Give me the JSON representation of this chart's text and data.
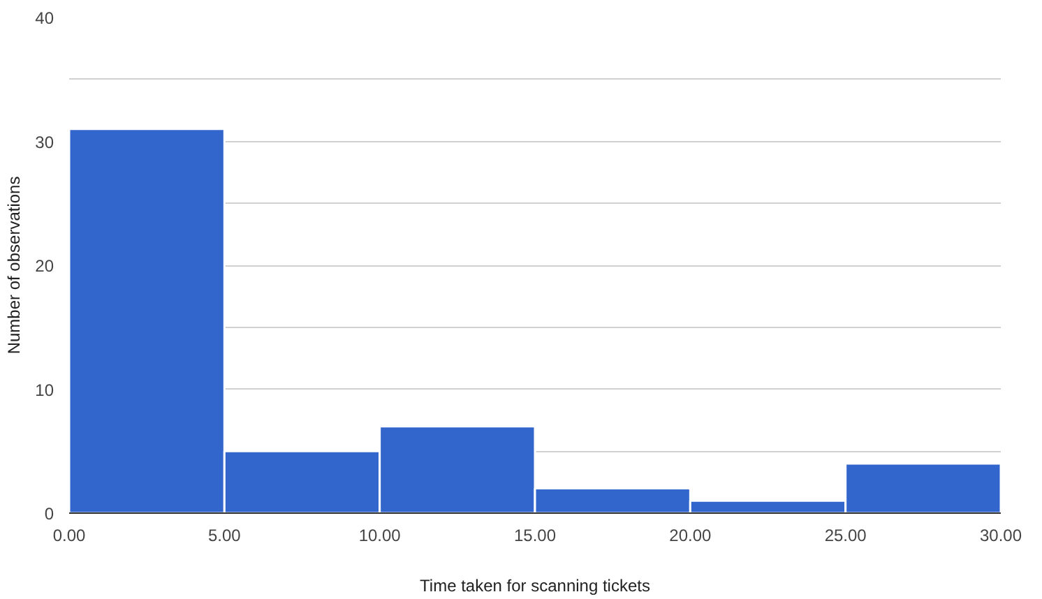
{
  "chart_data": {
    "type": "histogram",
    "xlabel": "Time taken for scanning tickets",
    "ylabel": "Number of observations",
    "bins": [
      0,
      5,
      10,
      15,
      20,
      25,
      30
    ],
    "values": [
      31,
      5,
      7,
      2,
      1,
      4
    ],
    "color": "#3366cc",
    "xlim": [
      0,
      30
    ],
    "xticks": [
      {
        "value": 0,
        "label": "0.00"
      },
      {
        "value": 5,
        "label": "5.00"
      },
      {
        "value": 10,
        "label": "10.00"
      },
      {
        "value": 15,
        "label": "15.00"
      },
      {
        "value": 20,
        "label": "20.00"
      },
      {
        "value": 25,
        "label": "25.00"
      },
      {
        "value": 30,
        "label": "30.00"
      }
    ],
    "ylim": [
      0,
      40
    ],
    "yticks": [
      0,
      {
        "value": 5,
        "label": null
      },
      10,
      {
        "value": 15,
        "label": null
      },
      20,
      {
        "value": 25,
        "label": null
      },
      30,
      {
        "value": 35,
        "label": null
      },
      40
    ],
    "grid": "y"
  }
}
